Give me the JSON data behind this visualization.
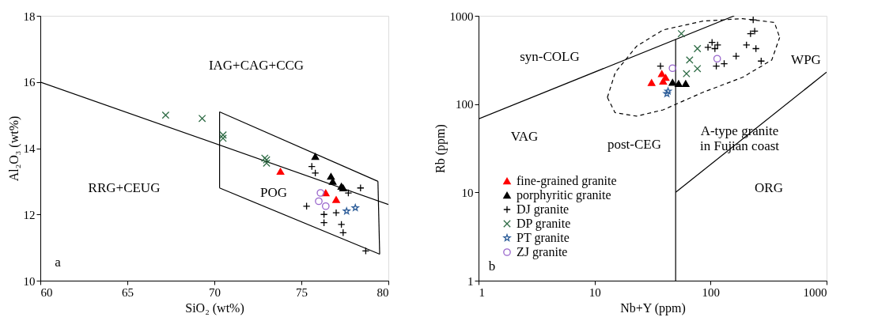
{
  "chart_data": [
    {
      "type": "scatter",
      "xlabel": "SiO₂ (wt%)",
      "ylabel": "Al₂O₃ (wt%)",
      "xlim": [
        60,
        80
      ],
      "ylim": [
        10,
        18
      ],
      "xticks": [
        60,
        65,
        70,
        75,
        80
      ],
      "yticks": [
        10,
        12,
        14,
        16,
        18
      ],
      "legend": false,
      "series": [
        {
          "color": "#ff0000",
          "marker": "triangle",
          "x": [
            73.8,
            76.4,
            77.0
          ],
          "values": [
            13.3,
            12.65,
            12.45
          ]
        },
        {
          "color": "#000000",
          "marker": "triangle",
          "x": [
            75.8,
            76.7,
            76.8,
            77.3,
            77.4
          ],
          "values": [
            13.75,
            13.15,
            13.0,
            12.85,
            12.8
          ]
        },
        {
          "color": "#000000",
          "marker": "cross",
          "x": [
            75.6,
            75.8,
            75.3,
            78.4,
            77.7,
            76.3,
            76.3,
            77.3,
            77.4,
            78.7,
            77.0
          ],
          "values": [
            13.45,
            13.25,
            12.25,
            12.8,
            12.65,
            12.0,
            11.75,
            11.7,
            11.45,
            10.9,
            12.05
          ]
        },
        {
          "color": "#2e6b45",
          "marker": "x",
          "x": [
            67.2,
            69.3,
            70.5,
            70.5,
            72.9,
            73.0,
            73.0
          ],
          "values": [
            15.0,
            14.9,
            14.4,
            14.3,
            13.7,
            13.55,
            13.65
          ]
        },
        {
          "color": "#2f5f9a",
          "marker": "star",
          "x": [
            77.6,
            78.1
          ],
          "values": [
            12.1,
            12.2
          ]
        },
        {
          "color": "#9966cc",
          "marker": "circle",
          "x": [
            76.1,
            76.0,
            76.4
          ],
          "values": [
            12.65,
            12.4,
            12.25
          ]
        },
        {
          "type": "line",
          "color": "#000000",
          "line_style": "solid",
          "x": [
            60,
            80
          ],
          "values": [
            16,
            12.3
          ]
        },
        {
          "type": "line",
          "color": "#000000",
          "line_style": "solid",
          "x": [
            70.3,
            79.4
          ],
          "values": [
            15.1,
            13.0
          ]
        },
        {
          "type": "line",
          "color": "#000000",
          "line_style": "solid",
          "x": [
            70.3,
            79.5
          ],
          "values": [
            12.8,
            10.8
          ]
        },
        {
          "type": "line",
          "color": "#000000",
          "line_style": "solid",
          "x": [
            70.3,
            70.3
          ],
          "values": [
            12.8,
            15.1
          ]
        },
        {
          "type": "line",
          "color": "#000000",
          "line_style": "solid",
          "x": [
            79.4,
            79.5
          ],
          "values": [
            13.0,
            10.8
          ]
        }
      ],
      "annotations": [
        "IAG+CAG+CCG",
        "RRG+CEUG",
        "POG",
        "a"
      ]
    },
    {
      "type": "scatter",
      "xlabel": "Nb+Y (ppm)",
      "ylabel": "Rb (ppm)",
      "log": "xy",
      "xlim": [
        1,
        1000
      ],
      "ylim": [
        1,
        1000
      ],
      "xticks": [
        1,
        10,
        100,
        1000
      ],
      "yticks": [
        1,
        10,
        100,
        1000
      ],
      "legend": "bottom left",
      "series": [
        {
          "name": "fine-grained granite",
          "color": "#ff0000",
          "marker": "triangle",
          "x": [
            31,
            38,
            41,
            39
          ],
          "values": [
            175,
            221,
            200,
            182
          ]
        },
        {
          "name": "porphyritic granite",
          "color": "#000000",
          "marker": "triangle",
          "x": [
            47,
            53,
            61
          ],
          "values": [
            176,
            171,
            171
          ]
        },
        {
          "name": "DJ granite",
          "color": "#000000",
          "marker": "cross",
          "x": [
            37,
            233,
            221,
            240,
            204,
            246,
            273,
            166,
            103,
            115,
            109,
            131,
            112,
            95
          ],
          "values": [
            269,
            900,
            628,
            670,
            468,
            425,
            307,
            349,
            500,
            468,
            425,
            287,
            269,
            439
          ]
        },
        {
          "name": "DP granite",
          "color": "#2e6b45",
          "marker": "x",
          "x": [
            56,
            66,
            62,
            77,
            77
          ],
          "values": [
            628,
            316,
            221,
            252,
            425
          ]
        },
        {
          "name": "PT granite",
          "color": "#2f5f9a",
          "marker": "star",
          "x": [
            42,
            43
          ],
          "values": [
            131,
            140
          ]
        },
        {
          "name": "ZJ granite",
          "color": "#9966cc",
          "marker": "circle",
          "x": [
            47,
            114
          ],
          "values": [
            255,
            327
          ]
        },
        {
          "type": "line",
          "color": "#000000",
          "line_style": "solid",
          "x": [
            1,
            160
          ],
          "values": [
            68,
            1000
          ]
        },
        {
          "type": "line",
          "color": "#000000",
          "line_style": "solid",
          "x": [
            50,
            50
          ],
          "values": [
            1,
            543
          ]
        },
        {
          "type": "line",
          "color": "#000000",
          "line_style": "solid",
          "x": [
            50,
            1000
          ],
          "values": [
            10,
            230
          ]
        },
        {
          "type": "line",
          "color": "#000000",
          "line_style": "dashed",
          "x": [
            12.9,
            15.1,
            23.1,
            39,
            86,
            189,
            355,
            394
          ],
          "values": [
            119,
            229,
            454,
            692,
            871,
            929,
            841,
            569
          ]
        },
        {
          "type": "line",
          "color": "#000000",
          "line_style": "dashed",
          "x": [
            12.9,
            15,
            23,
            39,
            86,
            189,
            337,
            394
          ],
          "values": [
            119,
            80,
            73,
            86,
            136,
            201,
            316,
            569
          ]
        }
      ],
      "annotations": [
        "syn-COLG",
        "WPG",
        "VAG",
        "post-CEG",
        "A-type granite\nin Fujian coast",
        "ORG",
        "b"
      ]
    }
  ]
}
